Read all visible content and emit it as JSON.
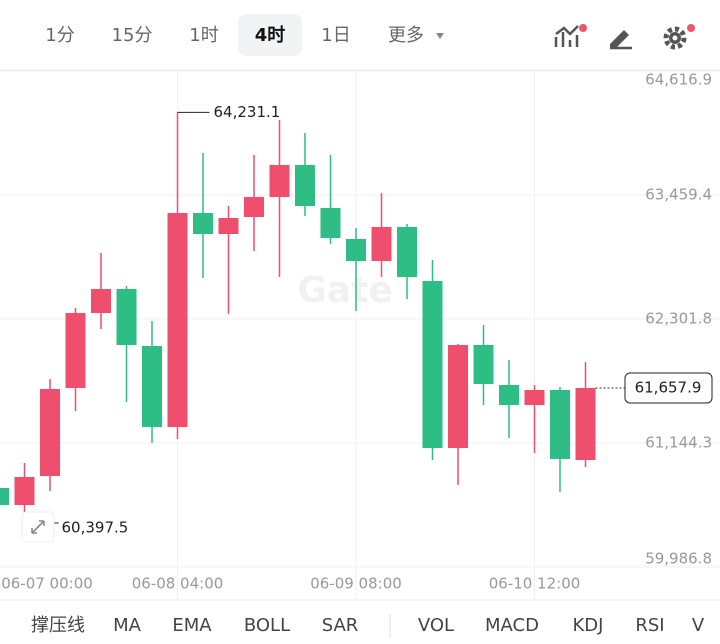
{
  "toolbar": {
    "intervals": [
      "1分",
      "15分",
      "1时",
      "4时",
      "1日",
      "更多"
    ],
    "active": 3
  },
  "chart_data": {
    "type": "candlestick",
    "watermark": "Gate",
    "categories": [
      "06-07 00:00",
      null,
      null,
      null,
      null,
      null,
      null,
      "06-08 04:00",
      null,
      null,
      null,
      null,
      null,
      null,
      "06-09 08:00",
      null,
      null,
      null,
      null,
      null,
      null,
      "06-10 12:00",
      null,
      null
    ],
    "open": [
      60724.2,
      60565.5,
      60836.2,
      61657.7,
      62357.8,
      62581.9,
      62049.8,
      61293.6,
      63291.3,
      63095.3,
      63254.0,
      63440.7,
      63739.4,
      63338.0,
      63048.6,
      62843.2,
      63160.6,
      62656.5,
      61097.6,
      62059.1,
      61685.7,
      61499.0,
      61639.0,
      60985.6
    ],
    "high": [
      60742.9,
      60957.6,
      61741.7,
      62404.5,
      62917.9,
      62609.9,
      62283.1,
      64231.1,
      63851.4,
      63356.7,
      63832.8,
      64159.5,
      64038.1,
      63832.8,
      63151.3,
      63478.0,
      63188.6,
      62852.6,
      62068.4,
      62245.8,
      61919.1,
      61685.7,
      61667.0,
      61900.4
    ],
    "low": [
      60546.8,
      60397.5,
      60696.2,
      61443.0,
      62208.5,
      61527.0,
      61144.3,
      61181.6,
      62684.6,
      62348.5,
      62936.6,
      62693.9,
      63263.3,
      63001.9,
      62376.5,
      62693.9,
      62488.5,
      60985.6,
      60752.2,
      61499.0,
      61191.0,
      61050.9,
      60686.9,
      60920.2
    ],
    "close": [
      60565.5,
      60826.9,
      61648.4,
      62357.8,
      62581.9,
      62059.1,
      61293.6,
      63291.3,
      63095.3,
      63244.7,
      63440.7,
      63739.4,
      63356.7,
      63058.0,
      62843.2,
      63160.6,
      62693.9,
      61097.6,
      62059.1,
      61695.0,
      61499.0,
      61639.0,
      60994.9,
      61657.9
    ],
    "up_color": "#ef4f6c",
    "down_color": "#2ebd85",
    "ylim": [
      59986.8,
      64616.9
    ],
    "yticks": [
      {
        "value": 64616.9,
        "label": "64,616.9"
      },
      {
        "value": 63459.4,
        "label": "63,459.4"
      },
      {
        "value": 62301.8,
        "label": "62,301.8"
      },
      {
        "value": 61144.3,
        "label": "61,144.3"
      },
      {
        "value": 59986.8,
        "label": "59,986.8"
      }
    ],
    "grid": true,
    "high_marker": {
      "value": 64231.1,
      "label": "64,231.1"
    },
    "low_marker": {
      "value": 60397.5,
      "label": "60,397.5"
    },
    "last_price": {
      "value": 61657.9,
      "label": "61,657.9"
    }
  },
  "indicators": [
    "撑压线",
    "MA",
    "EMA",
    "BOLL",
    "SAR",
    "VOL",
    "MACD",
    "KDJ",
    "RSI",
    "V"
  ]
}
